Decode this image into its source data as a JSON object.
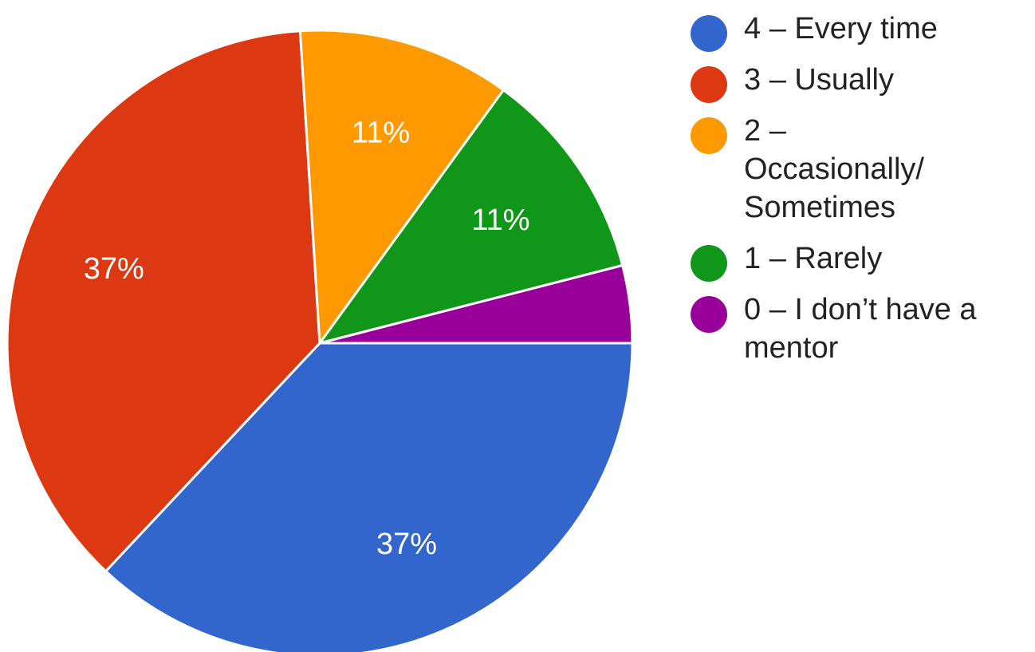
{
  "chart_data": {
    "type": "pie",
    "title": "",
    "legend_position": "right",
    "slices": [
      {
        "label": "4 – Every time",
        "value": 37,
        "display": "37%",
        "color": "#3366cc"
      },
      {
        "label": "3 – Usually",
        "value": 37,
        "display": "37%",
        "color": "#dc3912"
      },
      {
        "label": "2 – Occasionally/ Sometimes",
        "value": 11,
        "display": "11%",
        "color": "#ff9900"
      },
      {
        "label": "1 – Rarely",
        "value": 11,
        "display": "11%",
        "color": "#109618"
      },
      {
        "label": "0 – I don’t have a mentor",
        "value": 4,
        "display": "",
        "color": "#990099"
      }
    ]
  },
  "legend": {
    "items": [
      {
        "text": "4 – Every time",
        "color": "#3366cc"
      },
      {
        "text": "3 – Usually",
        "color": "#dc3912"
      },
      {
        "text": "2 –\nOccasionally/\nSometimes",
        "color": "#ff9900"
      },
      {
        "text": "1 – Rarely",
        "color": "#109618"
      },
      {
        "text": "0 – I don’t have a\nmentor",
        "color": "#990099"
      }
    ]
  }
}
